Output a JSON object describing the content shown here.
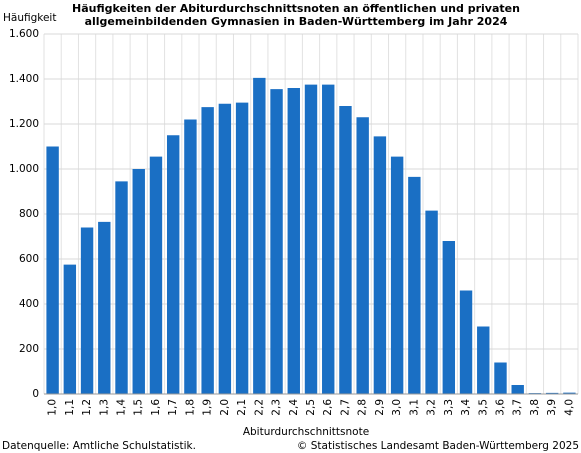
{
  "chart_data": {
    "type": "bar",
    "title": [
      "Häufigkeiten der Abiturdurchschnittsnoten an öffentlichen und privaten",
      "allgemeinbildenden Gymnasien in Baden-Württemberg im Jahr 2024"
    ],
    "y_label": "Häufigkeit",
    "x_label": "Abiturdurchschnittsnote",
    "source": "Datenquelle: Amtliche Schulstatistik.",
    "copyright": "© Statistisches Landesamt Baden-Württemberg 2025",
    "categories": [
      "1,0",
      "1,1",
      "1,2",
      "1,3",
      "1,4",
      "1,5",
      "1,6",
      "1,7",
      "1,8",
      "1,9",
      "2,0",
      "2,1",
      "2,2",
      "2,3",
      "2,4",
      "2,5",
      "2,6",
      "2,7",
      "2,8",
      "2,9",
      "3,0",
      "3,1",
      "3,2",
      "3,3",
      "3,4",
      "3,5",
      "3,6",
      "3,7",
      "3,8",
      "3,9",
      "4,0"
    ],
    "values": [
      1100,
      575,
      740,
      765,
      945,
      1000,
      1055,
      1150,
      1220,
      1275,
      1290,
      1295,
      1405,
      1355,
      1360,
      1375,
      1375,
      1280,
      1230,
      1145,
      1055,
      965,
      815,
      680,
      460,
      300,
      140,
      40,
      4,
      5,
      6
    ],
    "color": "#1a6fc4",
    "ylim": [
      0,
      1600
    ],
    "yticks": [
      0,
      200,
      400,
      600,
      800,
      {
        "value": 1000,
        "label": "1.000"
      },
      {
        "value": 1200,
        "label": "1.200"
      },
      {
        "value": 1400,
        "label": "1.400"
      },
      {
        "value": 1600,
        "label": "1.600"
      }
    ],
    "grid": true
  }
}
